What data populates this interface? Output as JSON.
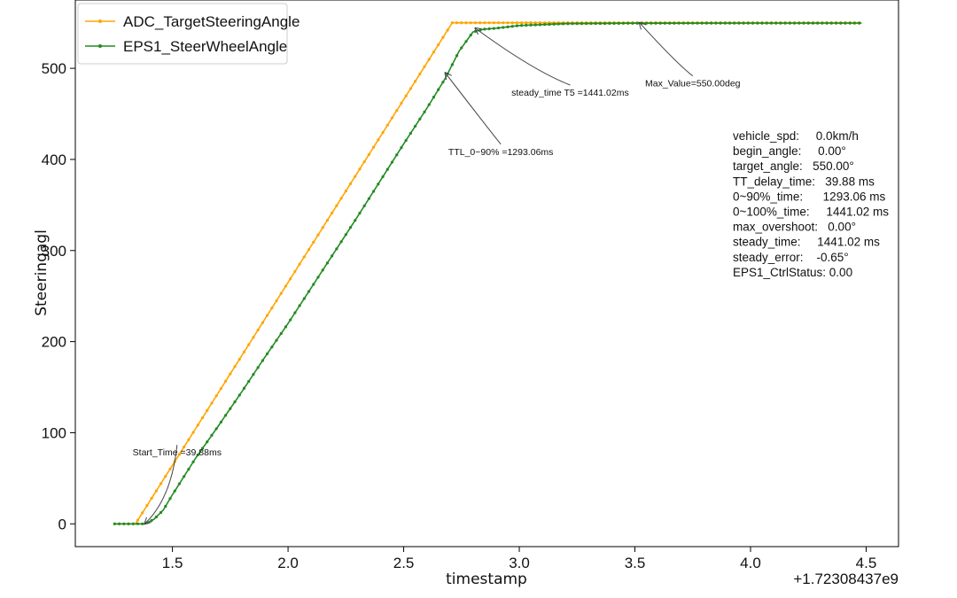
{
  "chart_data": {
    "type": "line",
    "title": "",
    "xlabel": "timestamp",
    "ylabel": "Steeringagl",
    "x_offset_label": "+1.72308437e9",
    "xlim": [
      1.08,
      4.64
    ],
    "ylim": [
      -25,
      575
    ],
    "x_ticks": [
      1.5,
      2.0,
      2.5,
      3.0,
      3.5,
      4.0,
      4.5
    ],
    "x_tick_labels": [
      "1.5",
      "2.0",
      "2.5",
      "3.0",
      "3.5",
      "4.0",
      "4.5"
    ],
    "y_ticks": [
      0,
      100,
      200,
      300,
      400,
      500
    ],
    "y_tick_labels": [
      "0",
      "100",
      "200",
      "300",
      "400",
      "500"
    ],
    "grid": false,
    "legend_position": "top-left",
    "series": [
      {
        "name": "ADC_TargetSteeringAngle",
        "color": "#FFA500",
        "marker": "dot",
        "x": [
          1.25,
          1.34,
          2.71,
          4.48
        ],
        "y": [
          0,
          0,
          550,
          550
        ]
      },
      {
        "name": "EPS1_SteerWheelAngle",
        "color": "#228B22",
        "marker": "dot",
        "x": [
          1.25,
          1.38,
          1.42,
          1.46,
          1.5,
          1.55,
          1.6,
          1.7,
          1.8,
          1.9,
          2.0,
          2.1,
          2.2,
          2.3,
          2.4,
          2.5,
          2.6,
          2.68,
          2.74,
          2.8,
          2.85,
          2.9,
          3.0,
          3.2,
          3.5,
          4.0,
          4.48
        ],
        "y": [
          0,
          0,
          5,
          15,
          32,
          52,
          72,
          108,
          145,
          183,
          220,
          259,
          298,
          337,
          377,
          417,
          456,
          489,
          519,
          540,
          543,
          544,
          547,
          549,
          549.5,
          549.6,
          549.6
        ]
      }
    ],
    "annotations": [
      {
        "text": "Start_Time =39.88ms",
        "point": [
          1.38,
          0
        ],
        "text_at": [
          1.52,
          75
        ]
      },
      {
        "text": "TTL_0~90% =1293.06ms",
        "point": [
          2.68,
          495
        ],
        "text_at": [
          2.92,
          405
        ]
      },
      {
        "text": "steady_time T5 =1441.02ms",
        "point": [
          2.81,
          544
        ],
        "text_at": [
          3.22,
          470
        ]
      },
      {
        "text": "Max_Value=550.00deg",
        "point": [
          3.52,
          550
        ],
        "text_at": [
          3.75,
          480
        ]
      }
    ],
    "stats_box": [
      "vehicle_spd:     0.0km/h",
      "begin_angle:     0.00°",
      "target_angle:   550.00°",
      "TT_delay_time:   39.88 ms",
      "0~90%_time:      1293.06 ms",
      "0~100%_time:     1441.02 ms",
      "max_overshoot:   0.00°",
      "steady_time:     1441.02 ms",
      "steady_error:    -0.65°",
      "EPS1_CtrlStatus: 0.00"
    ]
  }
}
